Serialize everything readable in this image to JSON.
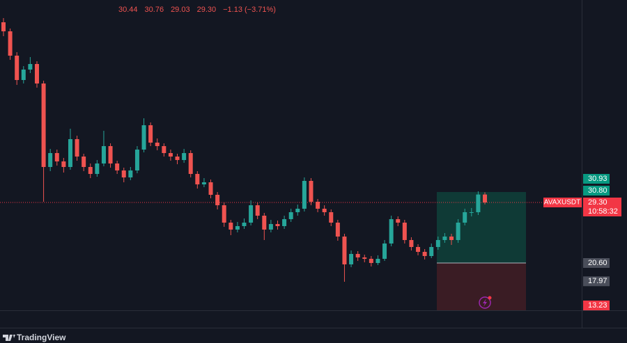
{
  "chart_data": {
    "type": "candlestick",
    "up_color": "#26a69a",
    "down_color": "#ef5350",
    "ylim": [
      13.8,
      58.4
    ],
    "open": [
      55.2,
      53.9,
      50.4,
      46.9,
      48.4,
      49.2,
      46.4,
      34.4,
      36.4,
      35.2,
      34.4,
      38.4,
      35.9,
      34.4,
      33.4,
      34.9,
      37.4,
      34.9,
      33.9,
      32.9,
      33.9,
      36.9,
      40.4,
      37.9,
      37.4,
      36.4,
      35.9,
      35.4,
      36.4,
      33.4,
      31.9,
      32.2,
      30.4,
      28.9,
      26.4,
      25.4,
      25.9,
      26.4,
      28.9,
      27.4,
      25.4,
      26.2,
      25.9,
      26.9,
      27.9,
      28.4,
      32.4,
      29.4,
      28.4,
      27.9,
      26.4,
      24.4,
      20.4,
      21.9,
      21.4,
      21.2,
      20.6,
      21.2,
      23.4,
      26.9,
      26.4,
      23.9,
      22.9,
      22.2,
      21.6,
      22.9,
      23.9,
      24.4,
      23.9,
      26.4,
      27.9,
      27.9,
      30.44
    ],
    "high": [
      55.8,
      54.3,
      50.9,
      48.9,
      50.2,
      49.6,
      46.8,
      37.0,
      36.9,
      35.7,
      39.9,
      38.9,
      36.3,
      34.9,
      35.4,
      39.6,
      37.8,
      35.3,
      34.3,
      34.4,
      37.4,
      41.4,
      40.8,
      38.5,
      37.8,
      36.9,
      36.3,
      37.0,
      36.8,
      33.8,
      32.8,
      32.6,
      30.8,
      29.3,
      26.8,
      26.5,
      27.0,
      29.6,
      29.3,
      27.8,
      26.8,
      26.7,
      27.4,
      28.4,
      29.0,
      32.9,
      32.8,
      29.8,
      28.9,
      28.3,
      26.8,
      24.8,
      22.4,
      22.3,
      21.8,
      21.6,
      21.7,
      23.9,
      27.4,
      27.3,
      26.8,
      24.3,
      23.3,
      22.6,
      23.4,
      24.4,
      24.9,
      24.8,
      26.9,
      28.4,
      28.5,
      30.9,
      30.76
    ],
    "low": [
      53.2,
      49.8,
      46.2,
      46.4,
      47.9,
      45.8,
      29.4,
      33.8,
      34.6,
      33.6,
      34.0,
      35.3,
      33.8,
      32.8,
      33.0,
      34.5,
      34.3,
      33.4,
      32.2,
      32.5,
      33.5,
      36.5,
      37.4,
      36.8,
      35.9,
      35.3,
      34.8,
      35.0,
      32.9,
      31.3,
      31.5,
      29.9,
      28.3,
      25.8,
      24.6,
      25.0,
      25.5,
      26.0,
      26.9,
      23.9,
      25.0,
      25.4,
      25.5,
      26.5,
      27.4,
      28.0,
      28.9,
      27.9,
      27.4,
      25.9,
      23.8,
      17.9,
      20.0,
      20.9,
      20.7,
      20.1,
      20.3,
      20.9,
      23.0,
      25.9,
      23.4,
      22.4,
      21.7,
      21.1,
      21.3,
      22.5,
      23.5,
      23.2,
      23.5,
      26.0,
      27.3,
      27.5,
      29.03
    ],
    "close": [
      53.9,
      50.4,
      46.9,
      48.4,
      49.2,
      46.4,
      34.4,
      36.4,
      35.2,
      34.4,
      38.4,
      35.9,
      34.4,
      33.4,
      34.9,
      37.4,
      34.9,
      33.9,
      32.9,
      33.9,
      36.9,
      40.4,
      37.9,
      37.4,
      36.4,
      35.9,
      35.4,
      36.4,
      33.4,
      31.9,
      32.2,
      30.4,
      28.9,
      26.4,
      25.4,
      25.9,
      26.4,
      28.9,
      27.4,
      25.4,
      26.2,
      25.9,
      26.9,
      27.9,
      28.4,
      32.4,
      29.4,
      28.4,
      27.9,
      26.4,
      24.4,
      20.4,
      21.9,
      21.4,
      21.2,
      20.6,
      21.2,
      23.4,
      26.9,
      26.4,
      23.9,
      22.9,
      22.2,
      21.6,
      22.9,
      23.9,
      24.4,
      23.9,
      26.4,
      27.9,
      27.9,
      30.44,
      29.3
    ],
    "ohlc_header": {
      "open": 30.44,
      "high": 30.76,
      "low": 29.03,
      "close": {
        "value": 29.3,
        "label": "29.30"
      },
      "change": "−1.13 (−3.71%)"
    },
    "last_price": {
      "symbol": "AVAXUSDT",
      "value": 29.3,
      "label": "29.30",
      "countdown": "10:58:32",
      "color": "#f23645"
    },
    "position": {
      "target": 30.8,
      "entry": 20.6,
      "stop": 13.23,
      "profit_color": "#0f3a36",
      "loss_color": "#3a1c24"
    },
    "price_labels": [
      {
        "value": 30.93,
        "color": "#089981"
      },
      {
        "value": 30.8,
        "label": "30.80",
        "color": "#089981"
      },
      {
        "value": 20.6,
        "label": "20.60",
        "color": "#4a4e5a"
      },
      {
        "value": 17.97,
        "color": "#4a4e5a"
      },
      {
        "value": 13.23,
        "color": "#f23645"
      }
    ],
    "branding": "TradingView"
  }
}
